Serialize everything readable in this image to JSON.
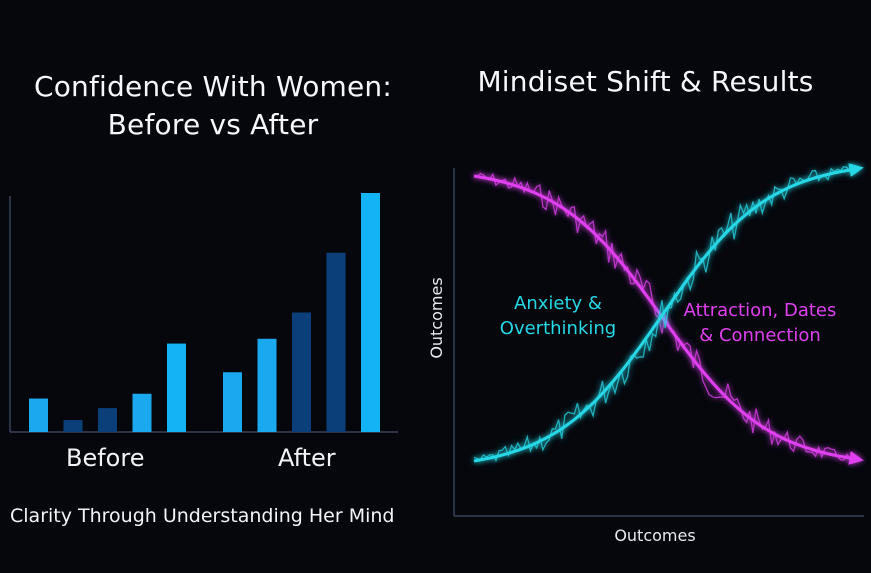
{
  "chart_data": [
    {
      "type": "bar",
      "title_lines": [
        "Confidence With Women:",
        "Before vs After"
      ],
      "groups": [
        "Before",
        "After"
      ],
      "values": [
        [
          0.14,
          0.05,
          0.1,
          0.16,
          0.37
        ],
        [
          0.25,
          0.39,
          0.5,
          0.75,
          1.0
        ]
      ],
      "colors": [
        [
          "#1aa8ee",
          "#0a3f7a",
          "#0a3f7a",
          "#1aa8ee",
          "#12b4f5"
        ],
        [
          "#1aa8ee",
          "#1aa8ee",
          "#0a3f7a",
          "#0a3f7a",
          "#12b4f5"
        ]
      ],
      "ylim": [
        0,
        1
      ],
      "footer": "Clarity Through Understanding Her Mind"
    },
    {
      "type": "line",
      "title": "Mindiset Shift & Results",
      "xlabel": "Outcomes",
      "ylabel": "Outcomes",
      "xlim": [
        0,
        1
      ],
      "ylim": [
        0,
        1
      ],
      "series": [
        {
          "label": "Anxiety & Overthinking",
          "label_lines": [
            "Anxiety &",
            "Overthinking"
          ],
          "color": "#e040f0",
          "direction": "falling",
          "y_start": 0.98,
          "y_end": 0.04
        },
        {
          "label": "Attraction, Dates & Connection",
          "label_lines": [
            "Attraction, Dates",
            "& Connection"
          ],
          "color": "#25d8e6",
          "direction": "rising",
          "y_start": 0.03,
          "y_end": 1.0
        }
      ]
    }
  ]
}
